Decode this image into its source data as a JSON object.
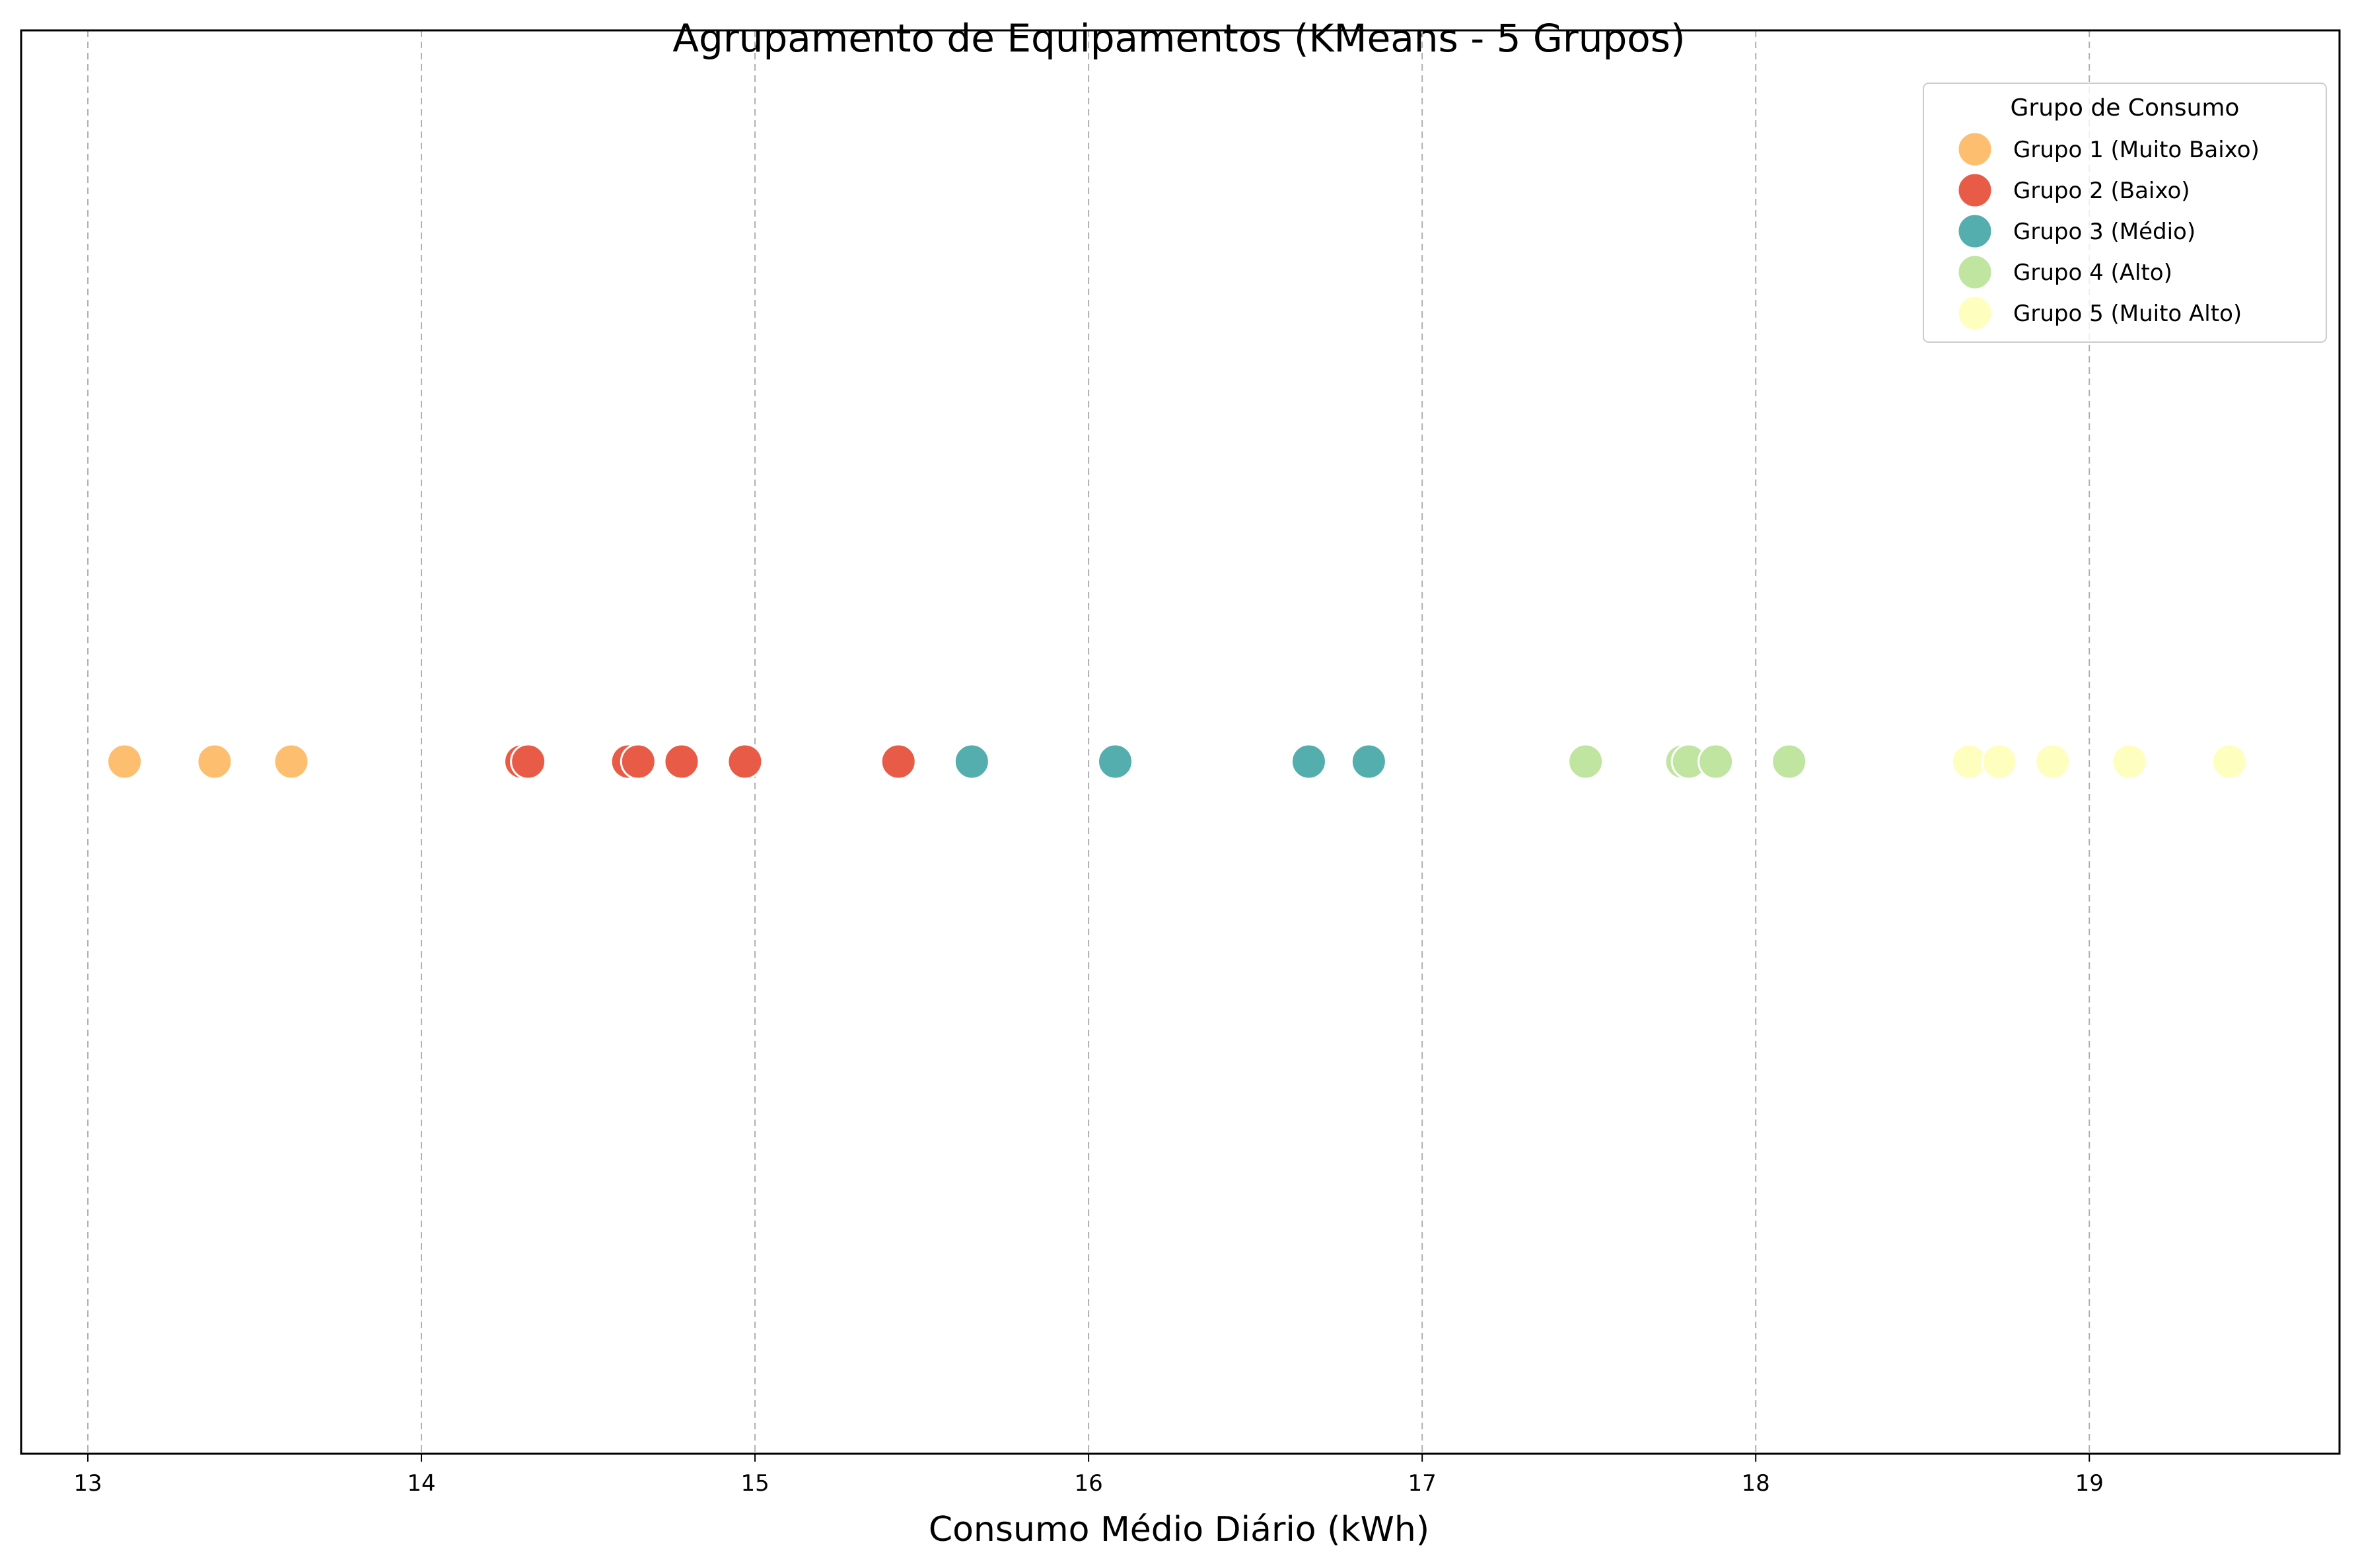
{
  "chart_data": {
    "type": "scatter",
    "title": "Agrupamento de Equipamentos (KMeans - 5 Grupos)",
    "xlabel": "Consumo Médio Diário (kWh)",
    "ylabel": "",
    "xlim": [
      12.8,
      19.75
    ],
    "xticks": [
      13,
      14,
      15,
      16,
      17,
      18,
      19
    ],
    "grid": "vertical dashed",
    "legend": {
      "title": "Grupo de Consumo",
      "placement": "top-right"
    },
    "series": [
      {
        "name": "Grupo 1 (Muito Baixo)",
        "color": "#fdbf6f",
        "x": [
          13.11,
          13.38,
          13.61
        ]
      },
      {
        "name": "Grupo 2 (Baixo)",
        "color": "#e85c47",
        "x": [
          14.3,
          14.32,
          14.62,
          14.65,
          14.78,
          14.97,
          15.43
        ]
      },
      {
        "name": "Grupo 3 (Médio)",
        "color": "#54aead",
        "x": [
          15.65,
          16.08,
          16.66,
          16.84
        ]
      },
      {
        "name": "Grupo 4 (Alto)",
        "color": "#bfe5a0",
        "x": [
          17.49,
          17.78,
          17.8,
          17.88,
          18.1
        ]
      },
      {
        "name": "Grupo 5 (Muito Alto)",
        "color": "#feffbe",
        "x": [
          18.64,
          18.73,
          18.89,
          19.12,
          19.42
        ]
      }
    ]
  }
}
